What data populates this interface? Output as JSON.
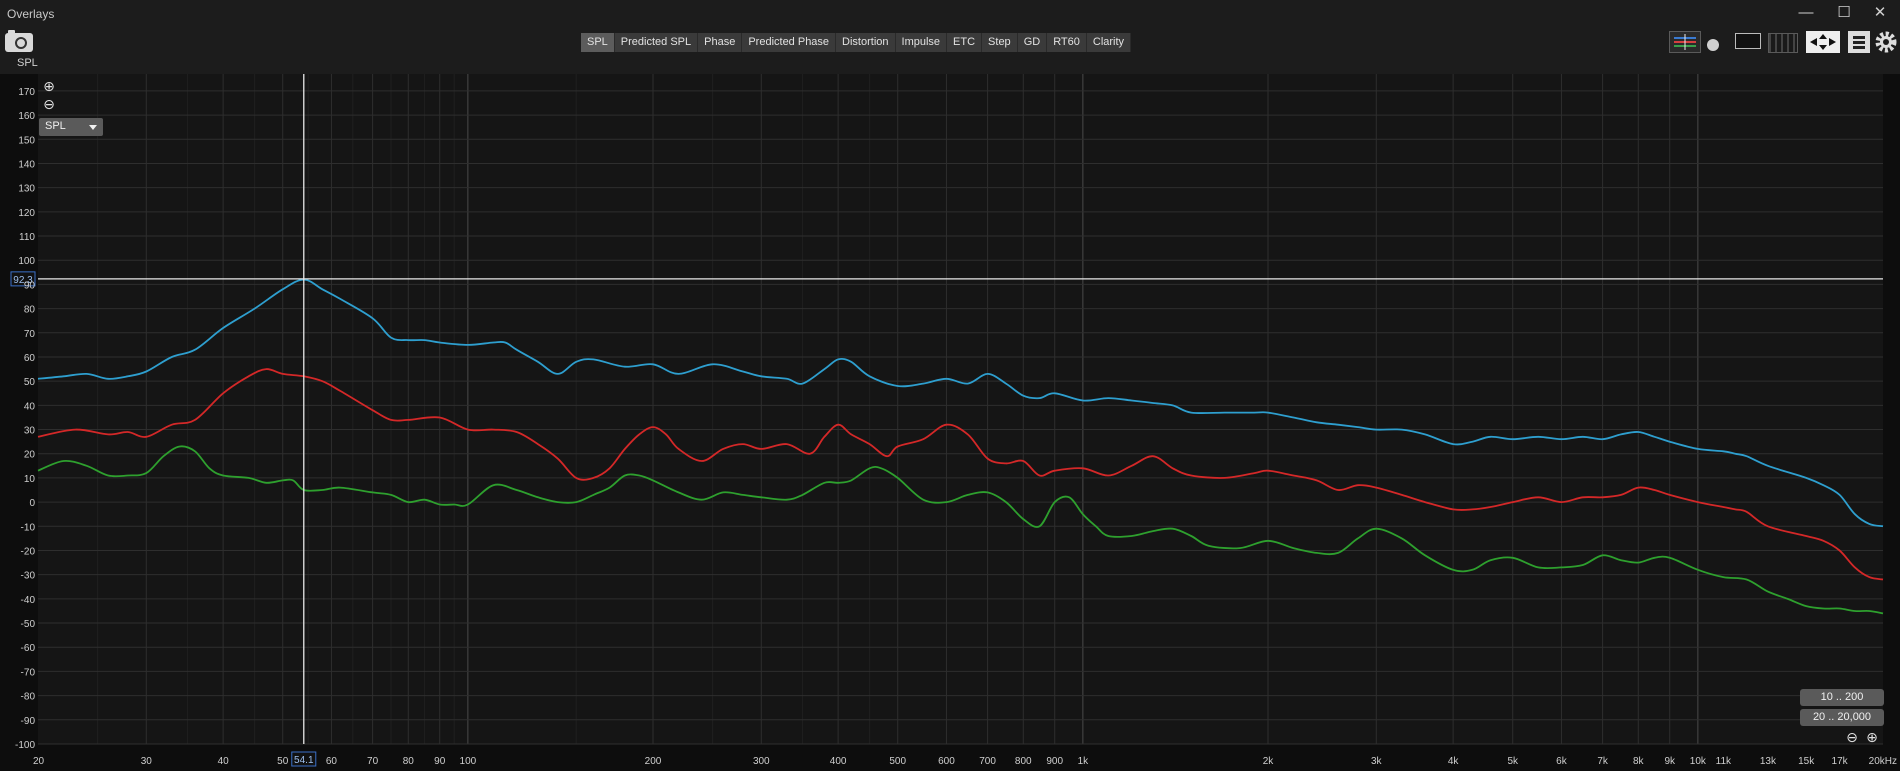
{
  "window": {
    "title": "Overlays",
    "controls": [
      "—",
      "☐",
      "✕"
    ]
  },
  "toolbar": {
    "tabs": [
      "SPL",
      "Predicted SPL",
      "Phase",
      "Predicted Phase",
      "Distortion",
      "Impulse",
      "ETC",
      "Step",
      "GD",
      "RT60",
      "Clarity"
    ],
    "active_tab": "SPL",
    "corner_label": "SPL"
  },
  "controls": {
    "zoom_in": "⊕",
    "zoom_out": "⊖",
    "measure_select": "SPL",
    "range_btn_1": "10 .. 200",
    "range_btn_2": "20 .. 20,000"
  },
  "cursor": {
    "x_value": 54.1,
    "x_label": "54.1",
    "y_value": 92.3,
    "y_label": "92.3"
  },
  "colors": {
    "blue": "#2e9fcf",
    "red": "#d42828",
    "green": "#2ea02e",
    "grid": "#2e2e2e",
    "grid_major": "#4a4a4a",
    "cursor": "#e8e8e8"
  },
  "chart_data": {
    "type": "line",
    "x_scale": "log",
    "xlim": [
      20,
      20000
    ],
    "ylim": [
      -100,
      177
    ],
    "x_ticks": [
      {
        "v": 20,
        "t": "20"
      },
      {
        "v": 30,
        "t": "30"
      },
      {
        "v": 40,
        "t": "40"
      },
      {
        "v": 50,
        "t": "50"
      },
      {
        "v": 60,
        "t": "60"
      },
      {
        "v": 70,
        "t": "70"
      },
      {
        "v": 80,
        "t": "80"
      },
      {
        "v": 90,
        "t": "90"
      },
      {
        "v": 100,
        "t": "100"
      },
      {
        "v": 200,
        "t": "200"
      },
      {
        "v": 300,
        "t": "300"
      },
      {
        "v": 400,
        "t": "400"
      },
      {
        "v": 500,
        "t": "500"
      },
      {
        "v": 600,
        "t": "600"
      },
      {
        "v": 700,
        "t": "700"
      },
      {
        "v": 800,
        "t": "800"
      },
      {
        "v": 900,
        "t": "900"
      },
      {
        "v": 1000,
        "t": "1k"
      },
      {
        "v": 2000,
        "t": "2k"
      },
      {
        "v": 3000,
        "t": "3k"
      },
      {
        "v": 4000,
        "t": "4k"
      },
      {
        "v": 5000,
        "t": "5k"
      },
      {
        "v": 6000,
        "t": "6k"
      },
      {
        "v": 7000,
        "t": "7k"
      },
      {
        "v": 8000,
        "t": "8k"
      },
      {
        "v": 9000,
        "t": "9k"
      },
      {
        "v": 10000,
        "t": "10k"
      },
      {
        "v": 11000,
        "t": "11k"
      },
      {
        "v": 13000,
        "t": "13k"
      },
      {
        "v": 15000,
        "t": "15k"
      },
      {
        "v": 17000,
        "t": "17k"
      },
      {
        "v": 20000,
        "t": "20kHz"
      }
    ],
    "y_ticks": [
      170,
      160,
      150,
      140,
      130,
      120,
      110,
      100,
      90,
      80,
      70,
      60,
      50,
      40,
      30,
      20,
      10,
      0,
      -10,
      -20,
      -30,
      -40,
      -50,
      -60,
      -70,
      -80,
      -90,
      -100
    ],
    "series": [
      {
        "color": "#2e9fcf",
        "points": [
          [
            20,
            51
          ],
          [
            22,
            52
          ],
          [
            24,
            53
          ],
          [
            26,
            51
          ],
          [
            28,
            52
          ],
          [
            30,
            54
          ],
          [
            33,
            60
          ],
          [
            36,
            63
          ],
          [
            40,
            72
          ],
          [
            45,
            80
          ],
          [
            50,
            88
          ],
          [
            54.1,
            92
          ],
          [
            58,
            88
          ],
          [
            62,
            84
          ],
          [
            70,
            76
          ],
          [
            75,
            68
          ],
          [
            80,
            67
          ],
          [
            85,
            67
          ],
          [
            90,
            66
          ],
          [
            100,
            65
          ],
          [
            110,
            66
          ],
          [
            115,
            66
          ],
          [
            120,
            63
          ],
          [
            130,
            58
          ],
          [
            140,
            53
          ],
          [
            150,
            58
          ],
          [
            160,
            59
          ],
          [
            180,
            56
          ],
          [
            200,
            57
          ],
          [
            220,
            53
          ],
          [
            250,
            57
          ],
          [
            280,
            54
          ],
          [
            300,
            52
          ],
          [
            330,
            51
          ],
          [
            350,
            49
          ],
          [
            380,
            55
          ],
          [
            400,
            59
          ],
          [
            420,
            58
          ],
          [
            450,
            52
          ],
          [
            500,
            48
          ],
          [
            550,
            49
          ],
          [
            600,
            51
          ],
          [
            650,
            49
          ],
          [
            700,
            53
          ],
          [
            750,
            49
          ],
          [
            800,
            44
          ],
          [
            850,
            43
          ],
          [
            900,
            45
          ],
          [
            1000,
            42
          ],
          [
            1100,
            43
          ],
          [
            1200,
            42
          ],
          [
            1300,
            41
          ],
          [
            1400,
            40
          ],
          [
            1500,
            37
          ],
          [
            1700,
            37
          ],
          [
            1900,
            37
          ],
          [
            2000,
            37
          ],
          [
            2200,
            35
          ],
          [
            2400,
            33
          ],
          [
            2600,
            32
          ],
          [
            2800,
            31
          ],
          [
            3000,
            30
          ],
          [
            3300,
            30
          ],
          [
            3600,
            28
          ],
          [
            4000,
            24
          ],
          [
            4300,
            25
          ],
          [
            4600,
            27
          ],
          [
            5000,
            26
          ],
          [
            5500,
            27
          ],
          [
            6000,
            26
          ],
          [
            6500,
            27
          ],
          [
            7000,
            26
          ],
          [
            7500,
            28
          ],
          [
            8000,
            29
          ],
          [
            8500,
            27
          ],
          [
            9000,
            25
          ],
          [
            10000,
            22
          ],
          [
            11000,
            21
          ],
          [
            11500,
            20
          ],
          [
            12000,
            19
          ],
          [
            13000,
            15
          ],
          [
            15000,
            10
          ],
          [
            16000,
            7
          ],
          [
            17000,
            3
          ],
          [
            18000,
            -5
          ],
          [
            19000,
            -9
          ],
          [
            20000,
            -10
          ]
        ]
      },
      {
        "color": "#d42828",
        "points": [
          [
            20,
            27
          ],
          [
            23,
            30
          ],
          [
            26,
            28
          ],
          [
            28,
            29
          ],
          [
            30,
            27
          ],
          [
            33,
            32
          ],
          [
            36,
            34
          ],
          [
            40,
            45
          ],
          [
            44,
            52
          ],
          [
            47,
            55
          ],
          [
            50,
            53
          ],
          [
            54.1,
            52
          ],
          [
            58,
            50
          ],
          [
            62,
            46
          ],
          [
            70,
            38
          ],
          [
            75,
            34
          ],
          [
            80,
            34
          ],
          [
            90,
            35
          ],
          [
            100,
            30
          ],
          [
            110,
            30
          ],
          [
            120,
            29
          ],
          [
            130,
            24
          ],
          [
            140,
            18
          ],
          [
            150,
            10
          ],
          [
            160,
            10
          ],
          [
            170,
            14
          ],
          [
            180,
            22
          ],
          [
            190,
            28
          ],
          [
            200,
            31
          ],
          [
            210,
            28
          ],
          [
            220,
            22
          ],
          [
            240,
            17
          ],
          [
            260,
            22
          ],
          [
            280,
            24
          ],
          [
            300,
            22
          ],
          [
            330,
            24
          ],
          [
            360,
            20
          ],
          [
            380,
            27
          ],
          [
            400,
            32
          ],
          [
            420,
            28
          ],
          [
            450,
            24
          ],
          [
            480,
            19
          ],
          [
            500,
            23
          ],
          [
            550,
            26
          ],
          [
            600,
            32
          ],
          [
            650,
            28
          ],
          [
            700,
            18
          ],
          [
            750,
            16
          ],
          [
            800,
            17
          ],
          [
            850,
            11
          ],
          [
            900,
            13
          ],
          [
            1000,
            14
          ],
          [
            1100,
            11
          ],
          [
            1200,
            15
          ],
          [
            1300,
            19
          ],
          [
            1400,
            14
          ],
          [
            1500,
            11
          ],
          [
            1700,
            10
          ],
          [
            1900,
            12
          ],
          [
            2000,
            13
          ],
          [
            2200,
            11
          ],
          [
            2400,
            9
          ],
          [
            2600,
            5
          ],
          [
            2800,
            7
          ],
          [
            3000,
            6
          ],
          [
            3300,
            3
          ],
          [
            3600,
            0
          ],
          [
            4000,
            -3
          ],
          [
            4300,
            -3
          ],
          [
            4600,
            -2
          ],
          [
            5000,
            0
          ],
          [
            5500,
            2
          ],
          [
            6000,
            0
          ],
          [
            6500,
            2
          ],
          [
            7000,
            2
          ],
          [
            7500,
            3
          ],
          [
            8000,
            6
          ],
          [
            8500,
            5
          ],
          [
            9000,
            3
          ],
          [
            10000,
            0
          ],
          [
            11000,
            -2
          ],
          [
            11500,
            -3
          ],
          [
            12000,
            -4
          ],
          [
            13000,
            -10
          ],
          [
            15000,
            -14
          ],
          [
            16000,
            -16
          ],
          [
            17000,
            -20
          ],
          [
            18000,
            -27
          ],
          [
            19000,
            -31
          ],
          [
            20000,
            -32
          ]
        ]
      },
      {
        "color": "#2ea02e",
        "points": [
          [
            20,
            13
          ],
          [
            22,
            17
          ],
          [
            24,
            15
          ],
          [
            26,
            11
          ],
          [
            28,
            11
          ],
          [
            30,
            12
          ],
          [
            32,
            19
          ],
          [
            34,
            23
          ],
          [
            36,
            21
          ],
          [
            38,
            14
          ],
          [
            40,
            11
          ],
          [
            44,
            10
          ],
          [
            47,
            8
          ],
          [
            50,
            9
          ],
          [
            52,
            9
          ],
          [
            54.1,
            5
          ],
          [
            58,
            5
          ],
          [
            62,
            6
          ],
          [
            70,
            4
          ],
          [
            75,
            3
          ],
          [
            80,
            0
          ],
          [
            85,
            1
          ],
          [
            90,
            -1
          ],
          [
            95,
            -1
          ],
          [
            100,
            -1
          ],
          [
            110,
            7
          ],
          [
            120,
            5
          ],
          [
            130,
            2
          ],
          [
            140,
            0
          ],
          [
            150,
            0
          ],
          [
            160,
            3
          ],
          [
            170,
            6
          ],
          [
            180,
            11
          ],
          [
            190,
            11
          ],
          [
            200,
            9
          ],
          [
            220,
            4
          ],
          [
            240,
            1
          ],
          [
            260,
            4
          ],
          [
            280,
            3
          ],
          [
            300,
            2
          ],
          [
            330,
            1
          ],
          [
            350,
            3
          ],
          [
            380,
            8
          ],
          [
            400,
            8
          ],
          [
            420,
            9
          ],
          [
            450,
            14
          ],
          [
            470,
            14
          ],
          [
            500,
            10
          ],
          [
            550,
            1
          ],
          [
            600,
            0
          ],
          [
            650,
            3
          ],
          [
            700,
            4
          ],
          [
            750,
            0
          ],
          [
            800,
            -7
          ],
          [
            850,
            -10
          ],
          [
            900,
            0
          ],
          [
            950,
            2
          ],
          [
            1000,
            -5
          ],
          [
            1050,
            -10
          ],
          [
            1100,
            -14
          ],
          [
            1200,
            -14
          ],
          [
            1300,
            -12
          ],
          [
            1400,
            -11
          ],
          [
            1500,
            -14
          ],
          [
            1600,
            -18
          ],
          [
            1800,
            -19
          ],
          [
            2000,
            -16
          ],
          [
            2200,
            -19
          ],
          [
            2400,
            -21
          ],
          [
            2600,
            -21
          ],
          [
            2800,
            -15
          ],
          [
            3000,
            -11
          ],
          [
            3300,
            -15
          ],
          [
            3600,
            -22
          ],
          [
            4000,
            -28
          ],
          [
            4300,
            -28
          ],
          [
            4600,
            -24
          ],
          [
            5000,
            -23
          ],
          [
            5500,
            -27
          ],
          [
            6000,
            -27
          ],
          [
            6500,
            -26
          ],
          [
            7000,
            -22
          ],
          [
            7500,
            -24
          ],
          [
            8000,
            -25
          ],
          [
            8500,
            -23
          ],
          [
            9000,
            -23
          ],
          [
            10000,
            -28
          ],
          [
            11000,
            -31
          ],
          [
            12000,
            -32
          ],
          [
            13000,
            -37
          ],
          [
            14000,
            -40
          ],
          [
            15000,
            -43
          ],
          [
            16000,
            -44
          ],
          [
            17000,
            -44
          ],
          [
            18000,
            -45
          ],
          [
            19000,
            -45
          ],
          [
            20000,
            -46
          ]
        ]
      }
    ]
  }
}
